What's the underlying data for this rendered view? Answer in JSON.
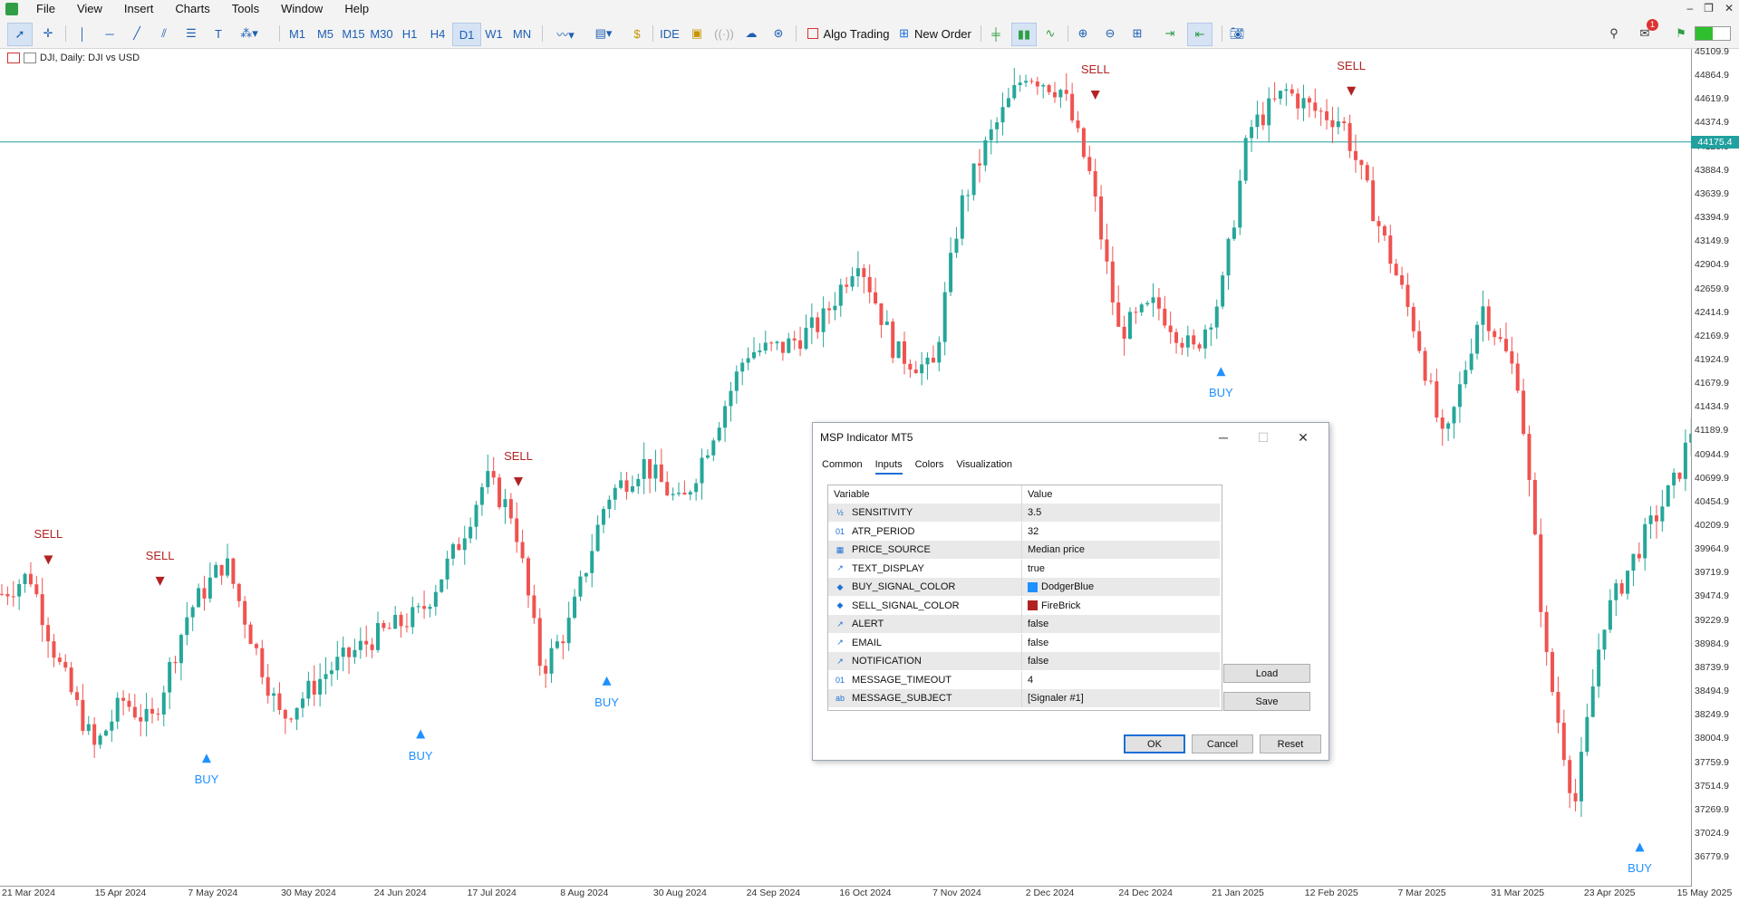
{
  "menu": [
    "File",
    "View",
    "Insert",
    "Charts",
    "Tools",
    "Window",
    "Help"
  ],
  "toolbar": {
    "timeframes": [
      "M1",
      "M5",
      "M15",
      "M30",
      "H1",
      "H4",
      "D1",
      "W1",
      "MN"
    ],
    "active_timeframe": "D1",
    "ide_label": "IDE",
    "algo_trading_label": "Algo Trading",
    "new_order_label": "New Order",
    "notification_count": "1"
  },
  "chart": {
    "title": "DJI, Daily:  DJI vs USD",
    "current_price": "44175.4",
    "accent_up": "#26a69a",
    "accent_down": "#ef5350",
    "buy_color": "#1e90ff",
    "sell_color": "#b22222"
  },
  "chart_data": {
    "type": "candlestick",
    "price_ticks": [
      "45109.9",
      "44864.9",
      "44619.9",
      "44374.9",
      "44129.9",
      "43884.9",
      "43639.9",
      "43394.9",
      "43149.9",
      "42904.9",
      "42659.9",
      "42414.9",
      "42169.9",
      "41924.9",
      "41679.9",
      "41434.9",
      "41189.9",
      "40944.9",
      "40699.9",
      "40454.9",
      "40209.9",
      "39964.9",
      "39719.9",
      "39474.9",
      "39229.9",
      "38984.9",
      "38739.9",
      "38494.9",
      "38249.9",
      "38004.9",
      "37759.9",
      "37514.9",
      "37269.9",
      "37024.9",
      "36779.9"
    ],
    "date_ticks": [
      "21 Mar 2024",
      "15 Apr 2024",
      "7 May 2024",
      "30 May 2024",
      "24 Jun 2024",
      "17 Jul 2024",
      "8 Aug 2024",
      "30 Aug 2024",
      "24 Sep 2024",
      "16 Oct 2024",
      "7 Nov 2024",
      "2 Dec 2024",
      "24 Dec 2024",
      "21 Jan 2025",
      "12 Feb 2025",
      "7 Mar 2025",
      "31 Mar 2025",
      "23 Apr 2025",
      "15 May 2025"
    ],
    "signals": [
      {
        "type": "SELL",
        "label": "SELL",
        "x": 0.5,
        "price": 39850
      },
      {
        "type": "SELL",
        "label": "SELL",
        "x": 1.7,
        "price": 39630
      },
      {
        "type": "SELL",
        "label": "SELL",
        "x": 5.55,
        "price": 40660
      },
      {
        "type": "SELL",
        "label": "SELL",
        "x": 11.75,
        "price": 44660
      },
      {
        "type": "SELL",
        "label": "SELL",
        "x": 14.5,
        "price": 44700
      },
      {
        "type": "BUY",
        "label": "BUY",
        "x": 2.2,
        "price": 37800
      },
      {
        "type": "BUY",
        "label": "BUY",
        "x": 4.5,
        "price": 38050
      },
      {
        "type": "BUY",
        "label": "BUY",
        "x": 6.5,
        "price": 38600
      },
      {
        "type": "BUY",
        "label": "BUY",
        "x": 13.1,
        "price": 41800
      },
      {
        "type": "BUY",
        "label": "BUY",
        "x": 17.6,
        "price": 36880
      }
    ]
  },
  "dialog": {
    "title": "MSP Indicator MT5",
    "tabs": [
      "Common",
      "Inputs",
      "Colors",
      "Visualization"
    ],
    "selected_tab": "Inputs",
    "col_variable": "Variable",
    "col_value": "Value",
    "params": [
      {
        "icon": "½",
        "name": "SENSITIVITY",
        "value": "3.5"
      },
      {
        "icon": "01",
        "name": "ATR_PERIOD",
        "value": "32"
      },
      {
        "icon": "▦",
        "name": "PRICE_SOURCE",
        "value": "Median price"
      },
      {
        "icon": "↗",
        "name": "TEXT_DISPLAY",
        "value": "true"
      },
      {
        "icon": "◆",
        "name": "BUY_SIGNAL_COLOR",
        "value": "DodgerBlue",
        "swatch": "#1e90ff"
      },
      {
        "icon": "◆",
        "name": "SELL_SIGNAL_COLOR",
        "value": "FireBrick",
        "swatch": "#b22222"
      },
      {
        "icon": "↗",
        "name": "ALERT",
        "value": "false"
      },
      {
        "icon": "↗",
        "name": "EMAIL",
        "value": "false"
      },
      {
        "icon": "↗",
        "name": "NOTIFICATION",
        "value": "false"
      },
      {
        "icon": "01",
        "name": "MESSAGE_TIMEOUT",
        "value": "4"
      },
      {
        "icon": "ab",
        "name": "MESSAGE_SUBJECT",
        "value": "[Signaler #1]"
      }
    ],
    "load_label": "Load",
    "save_label": "Save",
    "ok_label": "OK",
    "cancel_label": "Cancel",
    "reset_label": "Reset"
  }
}
